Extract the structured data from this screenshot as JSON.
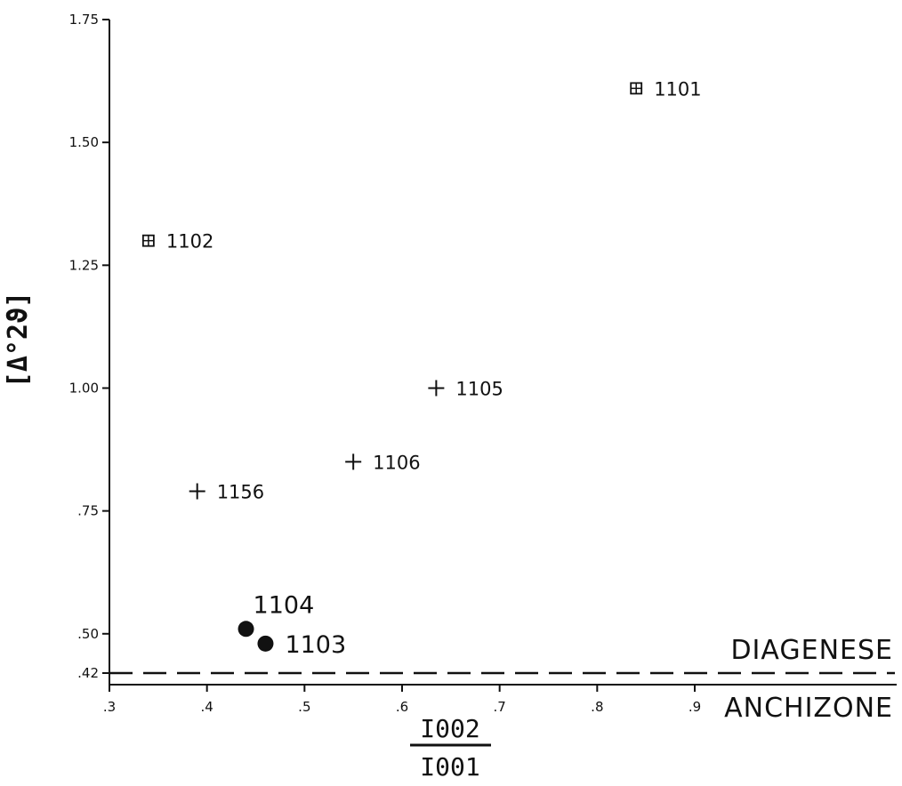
{
  "chart_data": {
    "type": "scatter",
    "title": "",
    "xlabel_numerator": "I002",
    "xlabel_denominator": "I001",
    "ylabel": "[Δ°2ϑ]",
    "xlim": [
      0.3,
      0.9
    ],
    "ylim": [
      0.42,
      1.75
    ],
    "xticks": [
      {
        "value": 0.3,
        "label": ".3"
      },
      {
        "value": 0.4,
        "label": ".4"
      },
      {
        "value": 0.5,
        "label": ".5"
      },
      {
        "value": 0.6,
        "label": ".6"
      },
      {
        "value": 0.7,
        "label": ".7"
      },
      {
        "value": 0.8,
        "label": ".8"
      },
      {
        "value": 0.9,
        "label": ".9"
      }
    ],
    "yticks": [
      {
        "value": 1.75,
        "label": "1.75"
      },
      {
        "value": 1.5,
        "label": "1.50"
      },
      {
        "value": 1.25,
        "label": "1.25"
      },
      {
        "value": 1.0,
        "label": "1.00"
      },
      {
        "value": 0.75,
        "label": ".75"
      },
      {
        "value": 0.5,
        "label": ".50"
      },
      {
        "value": 0.42,
        "label": ".42"
      }
    ],
    "threshold": {
      "y": 0.42,
      "label_above": "DIAGENESE",
      "label_below": "ANCHIZONE"
    },
    "points": [
      {
        "id": "1101",
        "label": "1101",
        "x": 0.84,
        "y": 1.61,
        "marker": "boxed-plus"
      },
      {
        "id": "1102",
        "label": "1102",
        "x": 0.34,
        "y": 1.3,
        "marker": "boxed-plus"
      },
      {
        "id": "1105",
        "label": "1105",
        "x": 0.635,
        "y": 1.0,
        "marker": "plus"
      },
      {
        "id": "1106",
        "label": "1106",
        "x": 0.55,
        "y": 0.85,
        "marker": "plus"
      },
      {
        "id": "1156",
        "label": "1156",
        "x": 0.39,
        "y": 0.79,
        "marker": "plus"
      },
      {
        "id": "1104",
        "label": "1104",
        "x": 0.44,
        "y": 0.51,
        "marker": "dot"
      },
      {
        "id": "1103",
        "label": "1103",
        "x": 0.46,
        "y": 0.48,
        "marker": "dot"
      }
    ]
  }
}
